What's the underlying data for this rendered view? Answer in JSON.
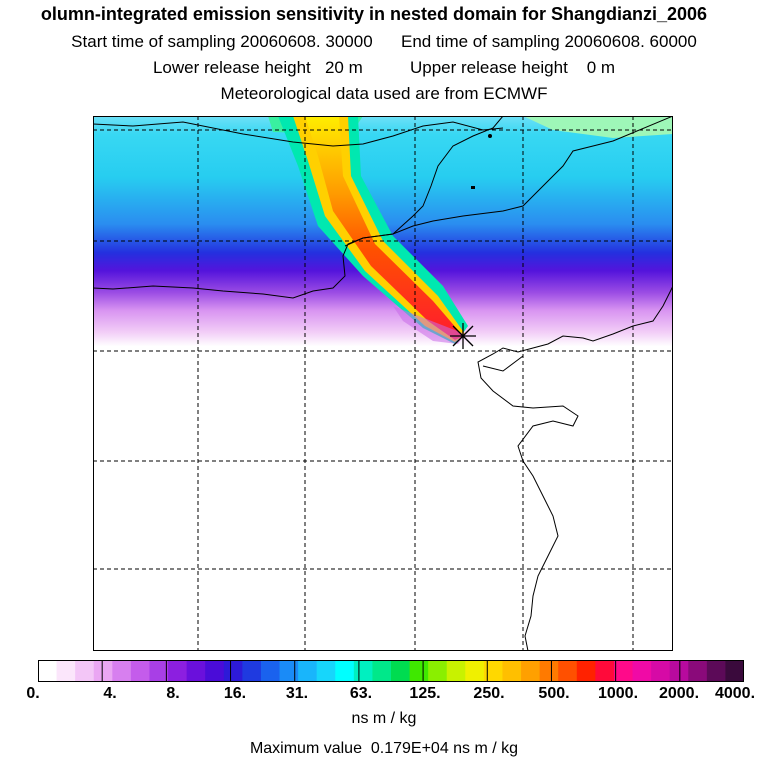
{
  "header": {
    "title": "olumn-integrated emission sensitivity in nested domain for Shangdianzi_2006",
    "start_time": "Start time of sampling 20060608. 30000",
    "end_time": "End time of sampling 20060608. 60000",
    "lower_release": "Lower release height   20 m",
    "upper_release": "Upper release height    0 m",
    "met_data": "Meteorological data used are from ECMWF"
  },
  "map": {
    "release_marker": "receptor-star",
    "gridlines": "dashed"
  },
  "colorbar": {
    "colors": [
      "#ffffff",
      "#fbe6fb",
      "#f3c6f7",
      "#eaa6f3",
      "#d77fef",
      "#c45ceb",
      "#a83fe6",
      "#8c1fe0",
      "#6a10dc",
      "#4a0cd8",
      "#2d1ad8",
      "#1f3ae0",
      "#1a62ee",
      "#1a8bf7",
      "#19b5fb",
      "#17d6fb",
      "#00ffff",
      "#00f0c0",
      "#00e88a",
      "#00dc50",
      "#3fe800",
      "#8aef00",
      "#c8f200",
      "#f0f000",
      "#ffd800",
      "#ffbf00",
      "#ffa000",
      "#ff7a00",
      "#ff5000",
      "#ff2200",
      "#ff0a3a",
      "#ff0a8a",
      "#f00aa6",
      "#d60aa6",
      "#b80a9e",
      "#8a0a7a",
      "#5c0a58",
      "#3a0a3c"
    ],
    "tick_labels": [
      "0.",
      "4.",
      "8.",
      "16.",
      "31.",
      "63.",
      "125.",
      "250.",
      "500.",
      "1000.",
      "2000.",
      "4000."
    ],
    "unit": "ns m / kg"
  },
  "footer": {
    "max_value": "Maximum value  0.179E+04 ns m / kg"
  }
}
